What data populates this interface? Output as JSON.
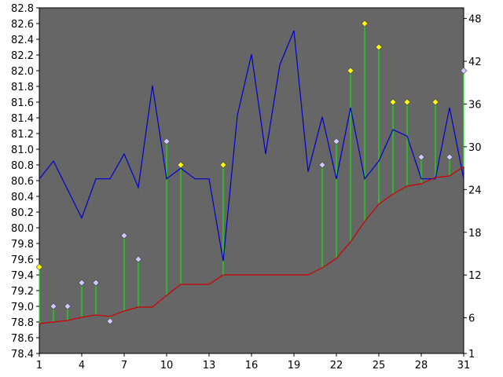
{
  "chart_data": {
    "type": "line",
    "title": "",
    "xlabel": "",
    "ylabel": "",
    "y2label": "",
    "grid": false,
    "legend": "none",
    "plot_background": "#666666",
    "x": [
      1,
      2,
      3,
      4,
      5,
      6,
      7,
      8,
      9,
      10,
      11,
      12,
      13,
      14,
      15,
      16,
      17,
      18,
      19,
      20,
      21,
      22,
      23,
      24,
      25,
      26,
      27,
      28,
      29,
      30,
      31
    ],
    "x_ticks": [
      1,
      4,
      7,
      10,
      13,
      16,
      19,
      22,
      25,
      28,
      31
    ],
    "x_range": [
      1,
      31
    ],
    "y_left": {
      "range": [
        78.4,
        82.8
      ],
      "ticks": [
        78.4,
        78.6,
        78.8,
        79.0,
        79.2,
        79.4,
        79.6,
        79.8,
        80.0,
        80.2,
        80.4,
        80.6,
        80.8,
        81.0,
        81.2,
        81.4,
        81.6,
        81.8,
        82.0,
        82.2,
        82.4,
        82.6,
        82.8
      ],
      "tick_labels": [
        "78.4",
        "78.6",
        "78.8",
        "79.0",
        "79.2",
        "79.4",
        "79.6",
        "79.8",
        "80.0",
        "80.2",
        "80.4",
        "80.6",
        "80.8",
        "81.0",
        "81.2",
        "81.4",
        "81.6",
        "81.8",
        "82.0",
        "82.2",
        "82.4",
        "82.6",
        "82.8"
      ]
    },
    "y_right": {
      "range": [
        1,
        49.5
      ],
      "ticks": [
        1,
        6,
        12,
        18,
        24,
        30,
        36,
        42,
        48
      ],
      "tick_labels": [
        "1",
        "6",
        "12",
        "18",
        "24",
        "30",
        "36",
        "42",
        "48"
      ]
    },
    "series": [
      {
        "style": "line",
        "axis": "right",
        "color": "#0000cc",
        "values": [
          25.5,
          28,
          24,
          20,
          25.5,
          25.5,
          29,
          24.3,
          38.6,
          25.5,
          27,
          25.5,
          25.5,
          14,
          34.4,
          43,
          29,
          41.5,
          46.3,
          26.5,
          34.2,
          25.5,
          35.5,
          25.5,
          28,
          32.4,
          31.5,
          25.5,
          25.5,
          35.5,
          25.5
        ]
      },
      {
        "style": "line",
        "axis": "left",
        "color": "#cc0000",
        "values": [
          78.78,
          78.8,
          78.82,
          78.86,
          78.89,
          78.87,
          78.94,
          78.99,
          78.99,
          79.14,
          79.28,
          79.28,
          79.28,
          79.4,
          79.4,
          79.4,
          79.4,
          79.4,
          79.4,
          79.4,
          79.49,
          79.61,
          79.82,
          80.08,
          80.3,
          80.43,
          80.53,
          80.56,
          80.64,
          80.66,
          80.78
        ]
      },
      {
        "style": "markers",
        "axis": "left",
        "values": [
          79.5,
          79.0,
          79.0,
          79.3,
          79.3,
          78.81,
          79.9,
          79.6,
          null,
          81.1,
          80.8,
          null,
          null,
          80.8,
          null,
          null,
          null,
          null,
          null,
          null,
          80.8,
          81.1,
          82.0,
          82.6,
          82.3,
          81.6,
          81.6,
          80.9,
          81.6,
          80.9,
          82.0
        ],
        "marker_colors": [
          "#ffff00",
          "#ccccff",
          "#ccccff",
          "#ccccff",
          "#ccccff",
          "#ccccff",
          "#ccccff",
          "#ccccff",
          null,
          "#ccccff",
          "#ffff00",
          null,
          null,
          "#ffff00",
          null,
          null,
          null,
          null,
          null,
          null,
          "#ccccff",
          "#ccccff",
          "#ffff00",
          "#ffff00",
          "#ffff00",
          "#ffff00",
          "#ffff00",
          "#ccccff",
          "#ffff00",
          "#ccccff",
          "#ccccff"
        ],
        "stem_color": "#00ff00"
      }
    ]
  }
}
